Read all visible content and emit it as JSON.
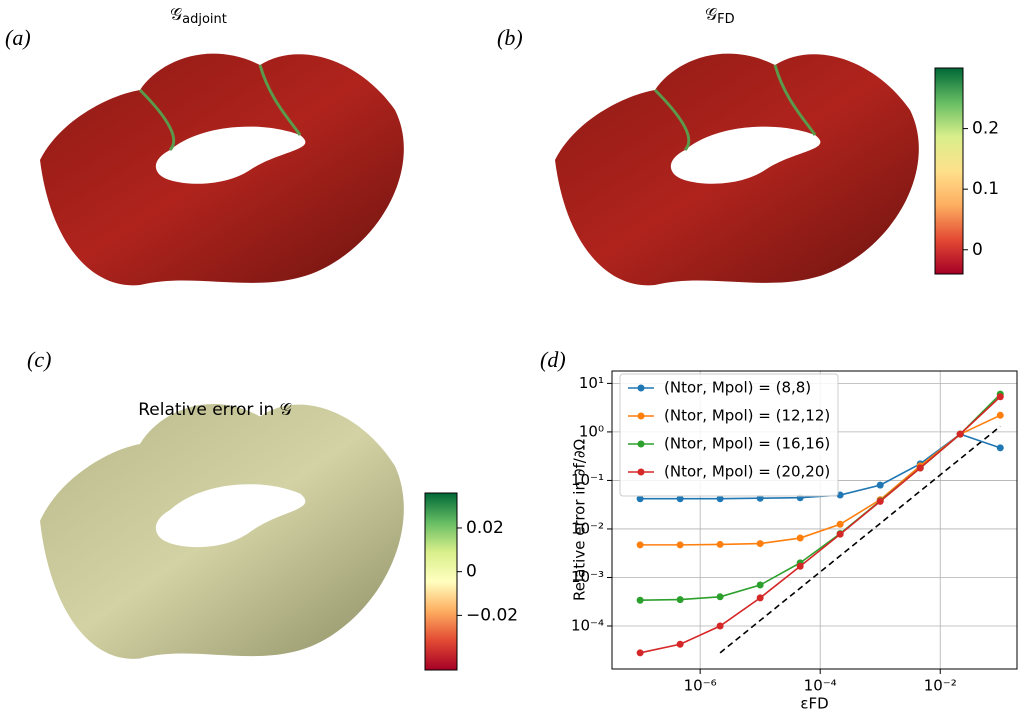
{
  "panels": [
    {
      "label": "(a)",
      "title": {
        "symbol": "𝒢",
        "subscript": "adjoint"
      }
    },
    {
      "label": "(b)",
      "title": {
        "symbol": "𝒢",
        "subscript": "FD"
      }
    },
    {
      "label": "(c)",
      "title": "Relative error in 𝒢"
    },
    {
      "label": "(d)"
    }
  ],
  "chart_data": [
    {
      "type": "colorbar",
      "colors": [
        "#a50026",
        "#e34a33",
        "#fdae61",
        "#fee08b",
        "#d9ef8b",
        "#66bd63",
        "#006837"
      ],
      "ylim": [
        -0.04,
        0.3
      ],
      "yticks": [
        0,
        0.1,
        0.2
      ]
    },
    {
      "type": "colorbar",
      "colors": [
        "#a50026",
        "#e34a33",
        "#fdae61",
        "#ffffbf",
        "#d9ef8b",
        "#66bd63",
        "#006837"
      ],
      "ylim": [
        -0.045,
        0.036
      ],
      "yticks": [
        {
          "value": -0.02,
          "label": "−0.02"
        },
        0,
        0.02
      ]
    },
    {
      "type": "line",
      "x_label": "εFD",
      "y_label": "Relative error in ∂f/∂Ω",
      "log_x": true,
      "log_y": true,
      "grid": true,
      "legend": "upper left",
      "x": [
        1e-07,
        4.64e-07,
        2.15e-06,
        1e-05,
        4.64e-05,
        0.000215,
        0.001,
        0.00464,
        0.0215,
        0.1
      ],
      "series": [
        {
          "name": "(Ntor, Mpol) = (8,8)",
          "color": "#1f77b4",
          "values": [
            0.042,
            0.042,
            0.042,
            0.043,
            0.044,
            0.05,
            0.08,
            0.22,
            0.9,
            0.47
          ]
        },
        {
          "name": "(Ntor, Mpol) = (12,12)",
          "color": "#ff7f0e",
          "values": [
            0.0047,
            0.0047,
            0.0048,
            0.005,
            0.0065,
            0.0125,
            0.04,
            0.2,
            0.9,
            2.2
          ]
        },
        {
          "name": "(Ntor, Mpol) = (16,16)",
          "color": "#2ca02c",
          "values": [
            0.00034,
            0.00035,
            0.0004,
            0.0007,
            0.002,
            0.008,
            0.038,
            0.18,
            0.9,
            6
          ]
        },
        {
          "name": "(Ntor, Mpol) = (20,20)",
          "color": "#d62728",
          "values": [
            2.8e-05,
            4.2e-05,
            0.0001,
            0.00038,
            0.0017,
            0.0078,
            0.037,
            0.18,
            0.9,
            5.3
          ]
        }
      ],
      "reference": {
        "x": [
          2.15e-06,
          0.1
        ],
        "values": [
          2.8e-05,
          1.3
        ],
        "color": "#000000",
        "style": "dashed"
      },
      "xlim": [
        3.4e-08,
        0.19
      ],
      "ylim": [
        1.3e-05,
        18
      ],
      "xticks": [
        {
          "value": 1e-06,
          "label": "10⁻⁶"
        },
        {
          "value": 0.0001,
          "label": "10⁻⁴"
        },
        {
          "value": 0.01,
          "label": "10⁻²"
        }
      ],
      "yticks": [
        {
          "value": 0.0001,
          "label": "10⁻⁴"
        },
        {
          "value": 0.001,
          "label": "10⁻³"
        },
        {
          "value": 0.01,
          "label": "10⁻²"
        },
        {
          "value": 0.1,
          "label": "10⁻¹"
        },
        {
          "value": 1,
          "label": "10⁰"
        },
        {
          "value": 10,
          "label": "10¹"
        }
      ]
    }
  ]
}
